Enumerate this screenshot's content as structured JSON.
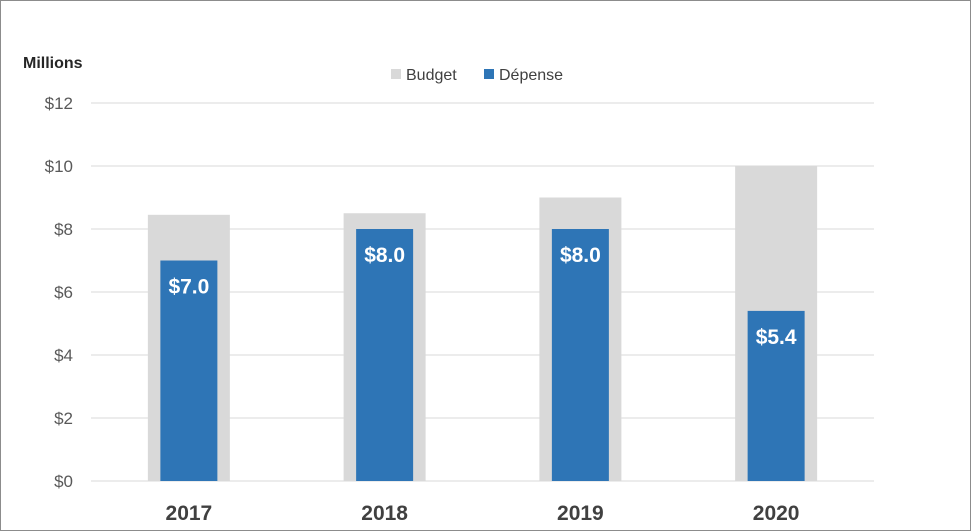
{
  "chart_data": {
    "type": "bar",
    "unit_label": "Millions",
    "categories": [
      "2017",
      "2018",
      "2019",
      "2020"
    ],
    "series": [
      {
        "name": "Budget",
        "color": "#d9d9d9",
        "values": [
          8.45,
          8.5,
          9.0,
          10.0
        ]
      },
      {
        "name": "Dépense",
        "color": "#2e75b6",
        "values": [
          7.0,
          8.0,
          8.0,
          5.4
        ],
        "data_labels": [
          "$7.0",
          "$8.0",
          "$8.0",
          "$5.4"
        ]
      }
    ],
    "yticks": [
      0,
      2,
      4,
      6,
      8,
      10,
      12
    ],
    "ytick_labels": [
      "$0",
      "$2",
      "$4",
      "$6",
      "$8",
      "$10",
      "$12"
    ],
    "ylim": [
      0,
      12
    ],
    "grid": true,
    "legend_position": "top-center",
    "gridline_color": "#d9d9d9"
  }
}
